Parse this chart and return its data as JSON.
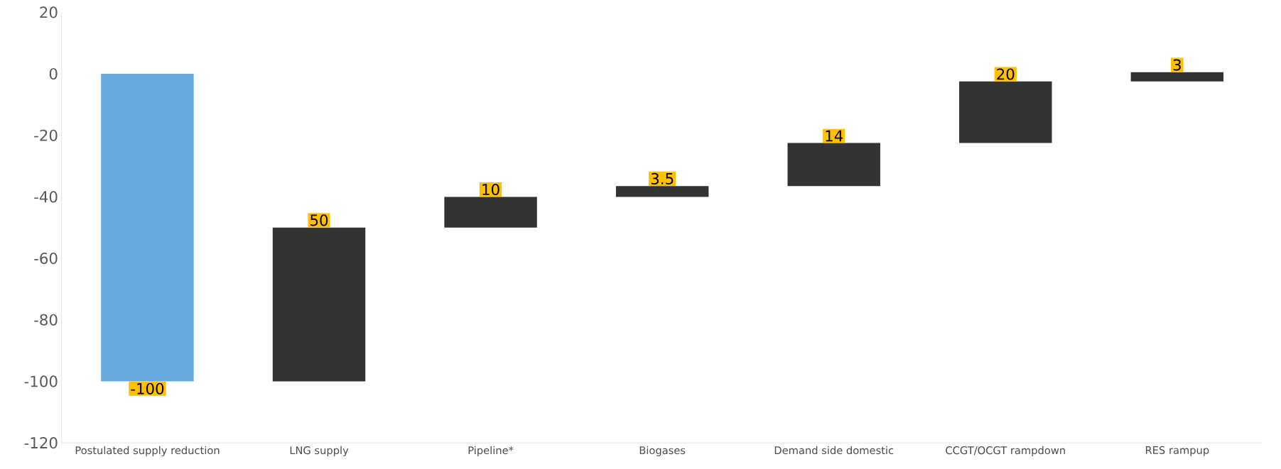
{
  "chart_data": {
    "type": "bar",
    "categories": [
      "Postulated supply reduction",
      "LNG supply",
      "Pipeline*",
      "Biogases",
      "Demand side domestic",
      "CCGT/OCGT rampdown",
      "RES rampup"
    ],
    "values": [
      -100,
      50,
      10,
      3.5,
      14,
      20,
      3
    ],
    "base": [
      0,
      -100,
      -50,
      -40,
      -36.5,
      -22.5,
      -2.5
    ],
    "colors": [
      "#6aabdf",
      "#333333",
      "#333333",
      "#333333",
      "#333333",
      "#333333",
      "#333333"
    ],
    "value_labels": [
      "-100",
      "50",
      "10",
      "3.5",
      "14",
      "20",
      "3"
    ],
    "ylim": [
      -120,
      20
    ],
    "yticks": [
      -120,
      -100,
      -80,
      -60,
      -40,
      -20,
      0,
      20
    ],
    "grid": false
  }
}
